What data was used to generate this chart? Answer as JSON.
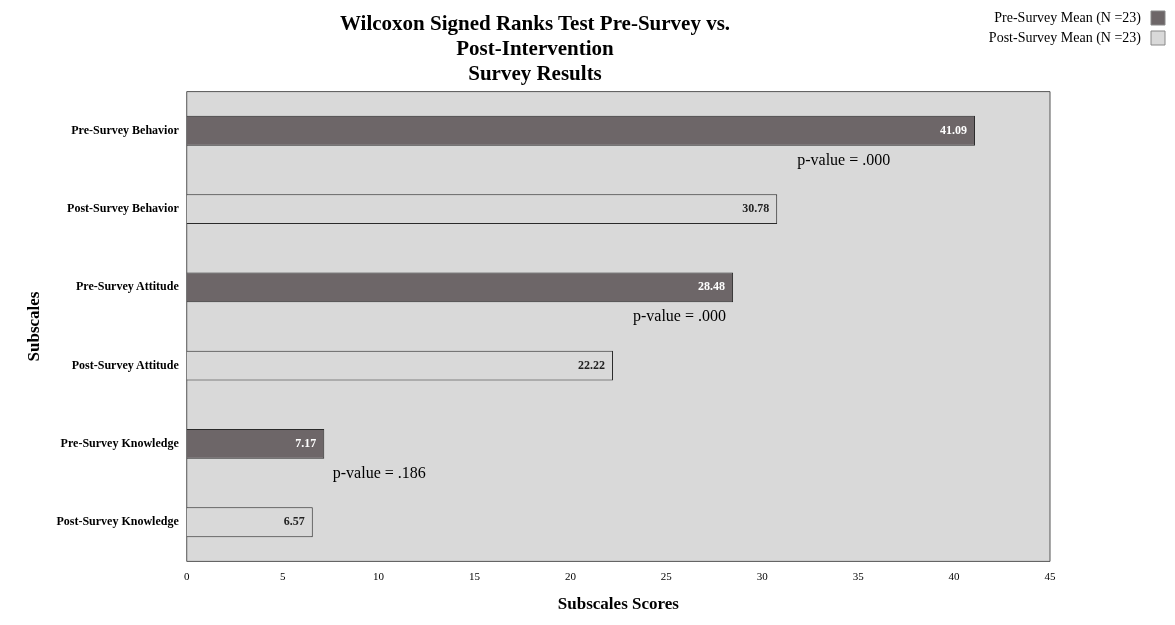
{
  "chart_data": {
    "type": "bar",
    "orientation": "horizontal",
    "title": "Wilcoxon Signed Ranks Test Pre-Survey vs.\nPost-Intervention\nSurvey Results",
    "xlabel": "Subscales Scores",
    "ylabel": "Subscales",
    "categories": [
      "Pre-Survey Behavior",
      "Post-Survey Behavior",
      "Pre-Survey Attitude",
      "Post-Survey Attitude",
      "Pre-Survey Knowledge",
      "Post-Survey Knowledge"
    ],
    "series": [
      {
        "name": "Pre-Survey Mean (N =23)",
        "color": "#6d6668",
        "values": [
          41.09,
          null,
          28.48,
          null,
          7.17,
          null
        ]
      },
      {
        "name": "Post-Survey Mean (N =23)",
        "color": "#d9d9d9",
        "values": [
          null,
          30.78,
          null,
          22.22,
          null,
          6.57
        ]
      }
    ],
    "xlim": [
      0,
      45
    ],
    "xticks": [
      0,
      5,
      10,
      15,
      20,
      25,
      30,
      35,
      40,
      45
    ],
    "data_labels": true,
    "grid": false,
    "legend": "top right",
    "annotations": [
      "p-value = .000",
      "p-value = .000",
      "p-value = .186"
    ]
  }
}
